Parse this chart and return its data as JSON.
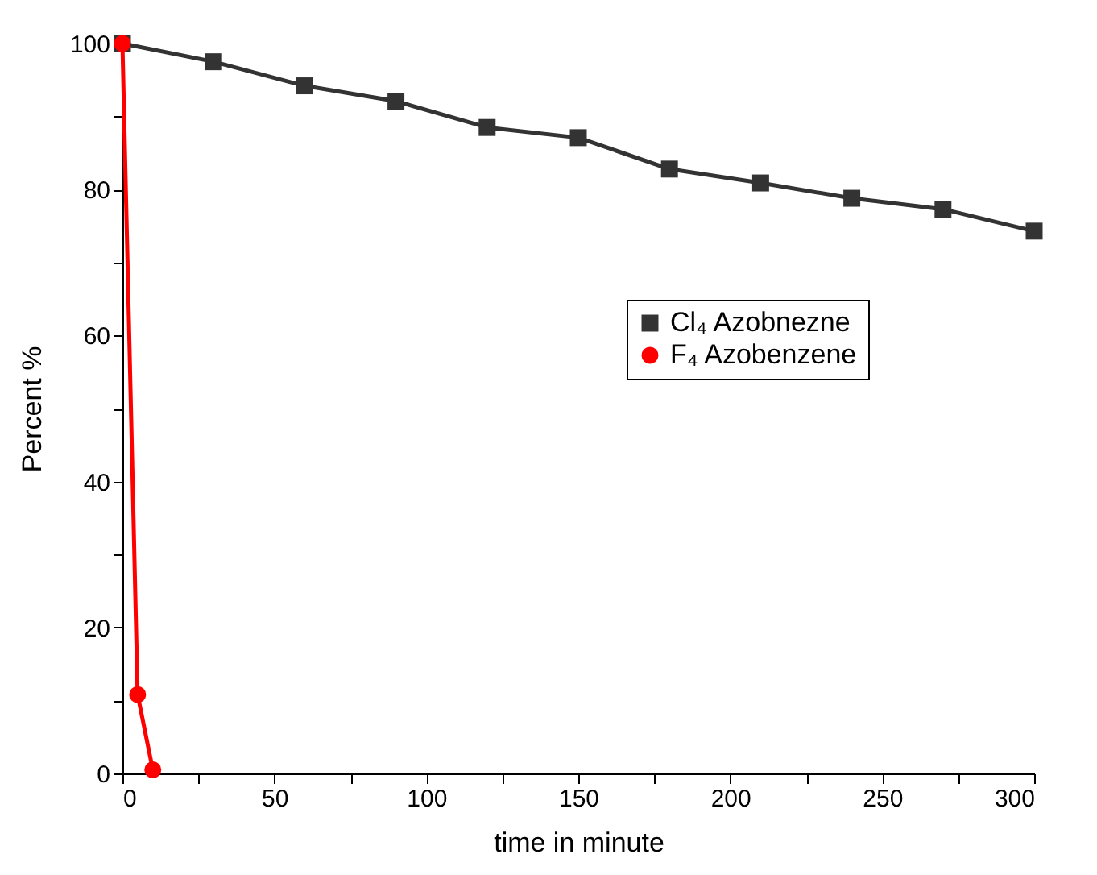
{
  "chart_data": {
    "type": "line",
    "xlabel": "time in minute",
    "ylabel": "Percent %",
    "xlim": [
      0,
      300
    ],
    "ylim": [
      0,
      100
    ],
    "xticks": [
      0,
      {
        "value": 25,
        "label": null
      },
      50,
      {
        "value": 75,
        "label": null
      },
      100,
      {
        "value": 125,
        "label": null
      },
      150,
      {
        "value": 175,
        "label": null
      },
      200,
      {
        "value": 225,
        "label": null
      },
      250,
      {
        "value": 275,
        "label": null
      },
      300
    ],
    "yticks": [
      0,
      {
        "value": 10,
        "label": null
      },
      20,
      {
        "value": 30,
        "label": null
      },
      40,
      {
        "value": 50,
        "label": null
      },
      60,
      {
        "value": 70,
        "label": null
      },
      80,
      {
        "value": 90,
        "label": null
      },
      100
    ],
    "grid": false,
    "legend": "right",
    "line_style": "solid",
    "series": [
      {
        "name": "Cl₄ Azobnezne",
        "color": "#333333",
        "marker": "square",
        "x": [
          0,
          30,
          60,
          90,
          120,
          150,
          180,
          210,
          240,
          270,
          300
        ],
        "values": [
          100,
          97.5,
          94.2,
          92.1,
          88.5,
          87.1,
          82.8,
          80.9,
          78.8,
          77.3,
          74.3
        ]
      },
      {
        "name": "F₄ Azobenzene",
        "color": "#ff0000",
        "marker": "circle",
        "x": [
          0,
          5,
          10
        ],
        "values": [
          100,
          10.8,
          0.5
        ]
      }
    ]
  }
}
